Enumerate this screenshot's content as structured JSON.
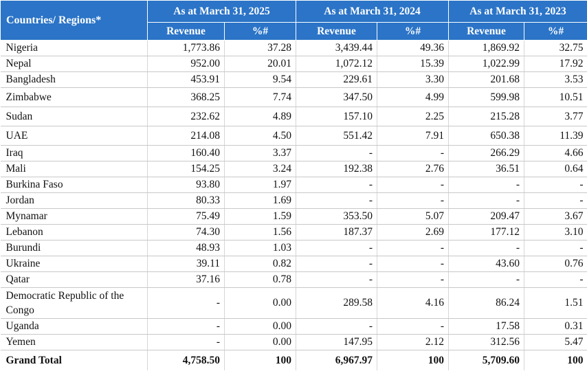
{
  "header": {
    "region_label": "Countries/ Regions*",
    "periods": [
      "As at March 31, 2025",
      "As at March 31, 2024",
      "As at March 31, 2023"
    ],
    "revenue_label": "Revenue",
    "percent_label": "%#"
  },
  "rows": [
    {
      "name": "Nigeria",
      "r2025": "1,773.86",
      "p2025": "37.28",
      "r2024": "3,439.44",
      "p2024": "49.36",
      "r2023": "1,869.92",
      "p2023": "32.75"
    },
    {
      "name": "Nepal",
      "r2025": "952.00",
      "p2025": "20.01",
      "r2024": "1,072.12",
      "p2024": "15.39",
      "r2023": "1,022.99",
      "p2023": "17.92"
    },
    {
      "name": "Bangladesh",
      "r2025": "453.91",
      "p2025": "9.54",
      "r2024": "229.61",
      "p2024": "3.30",
      "r2023": "201.68",
      "p2023": "3.53"
    },
    {
      "name": "Zimbabwe",
      "r2025": "368.25",
      "p2025": "7.74",
      "r2024": "347.50",
      "p2024": "4.99",
      "r2023": "599.98",
      "p2023": "10.51"
    },
    {
      "name": "Sudan",
      "r2025": "232.62",
      "p2025": "4.89",
      "r2024": "157.10",
      "p2024": "2.25",
      "r2023": "215.28",
      "p2023": "3.77"
    },
    {
      "name": "UAE",
      "r2025": "214.08",
      "p2025": "4.50",
      "r2024": "551.42",
      "p2024": "7.91",
      "r2023": "650.38",
      "p2023": "11.39"
    },
    {
      "name": "Iraq",
      "r2025": "160.40",
      "p2025": "3.37",
      "r2024": "-",
      "p2024": "-",
      "r2023": "266.29",
      "p2023": "4.66"
    },
    {
      "name": "Mali",
      "r2025": "154.25",
      "p2025": "3.24",
      "r2024": "192.38",
      "p2024": "2.76",
      "r2023": "36.51",
      "p2023": "0.64"
    },
    {
      "name": "Burkina Faso",
      "r2025": "93.80",
      "p2025": "1.97",
      "r2024": "-",
      "p2024": "-",
      "r2023": "-",
      "p2023": "-"
    },
    {
      "name": "Jordan",
      "r2025": "80.33",
      "p2025": "1.69",
      "r2024": "-",
      "p2024": "-",
      "r2023": "-",
      "p2023": "-"
    },
    {
      "name": "Mynamar",
      "r2025": "75.49",
      "p2025": "1.59",
      "r2024": "353.50",
      "p2024": "5.07",
      "r2023": "209.47",
      "p2023": "3.67"
    },
    {
      "name": "Lebanon",
      "r2025": "74.30",
      "p2025": "1.56",
      "r2024": "187.37",
      "p2024": "2.69",
      "r2023": "177.12",
      "p2023": "3.10"
    },
    {
      "name": "Burundi",
      "r2025": "48.93",
      "p2025": "1.03",
      "r2024": "-",
      "p2024": "-",
      "r2023": "-",
      "p2023": "-"
    },
    {
      "name": "Ukraine",
      "r2025": "39.11",
      "p2025": "0.82",
      "r2024": "-",
      "p2024": "-",
      "r2023": "43.60",
      "p2023": "0.76"
    },
    {
      "name": "Qatar",
      "r2025": "37.16",
      "p2025": "0.78",
      "r2024": "-",
      "p2024": "-",
      "r2023": "-",
      "p2023": "-"
    },
    {
      "name": "Democratic Republic of the Congo",
      "r2025": "-",
      "p2025": "0.00",
      "r2024": "289.58",
      "p2024": "4.16",
      "r2023": "86.24",
      "p2023": "1.51"
    },
    {
      "name": "Uganda",
      "r2025": "-",
      "p2025": "0.00",
      "r2024": "-",
      "p2024": "-",
      "r2023": "17.58",
      "p2023": "0.31"
    },
    {
      "name": "Yemen",
      "r2025": "-",
      "p2025": "0.00",
      "r2024": "147.95",
      "p2024": "2.12",
      "r2023": "312.56",
      "p2023": "5.47"
    }
  ],
  "total": {
    "name": "Grand Total",
    "r2025": "4,758.50",
    "p2025": "100",
    "r2024": "6,967.97",
    "p2024": "100",
    "r2023": "5,709.60",
    "p2023": "100"
  }
}
